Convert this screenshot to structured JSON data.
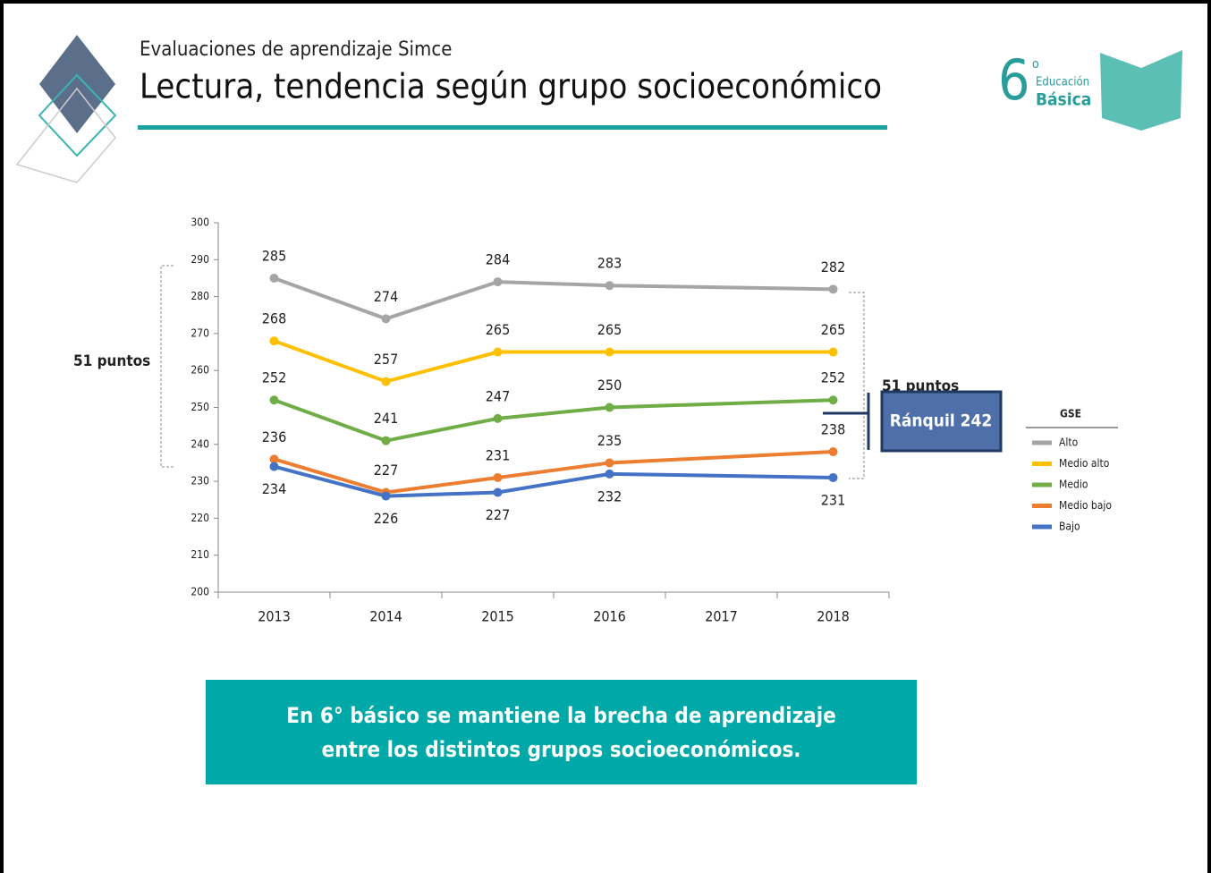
{
  "header": {
    "kicker": "Evaluaciones de aprendizaje Simce",
    "title": "Lectura, tendencia según grupo socioeconómico",
    "logo": {
      "grade": "6",
      "ordinal": "o",
      "line1": "Educación",
      "line2": "Básica"
    }
  },
  "chart_data": {
    "type": "line",
    "x": [
      2013,
      2014,
      2015,
      2016,
      2018
    ],
    "xlim": [
      2012.5,
      2018.5
    ],
    "xticks": [
      2013,
      2014,
      2015,
      2016,
      2017,
      2018
    ],
    "ylim": [
      200,
      300
    ],
    "yticks": [
      200,
      210,
      220,
      230,
      240,
      250,
      260,
      270,
      280,
      290,
      300
    ],
    "series": [
      {
        "name": "Alto",
        "color": "#a5a5a5",
        "values": [
          285,
          274,
          284,
          283,
          282
        ]
      },
      {
        "name": "Medio alto",
        "color": "#ffc000",
        "values": [
          268,
          257,
          265,
          265,
          265
        ]
      },
      {
        "name": "Medio",
        "color": "#70ad47",
        "values": [
          252,
          241,
          247,
          250,
          252
        ]
      },
      {
        "name": "Medio bajo",
        "color": "#ed7d31",
        "values": [
          236,
          227,
          231,
          235,
          238
        ]
      },
      {
        "name": "Bajo",
        "color": "#4472c4",
        "values": [
          234,
          226,
          227,
          232,
          231
        ]
      }
    ],
    "legend_title": "GSE",
    "annotations": {
      "left_gap": "51 puntos",
      "right_gap": "51 puntos",
      "marker": "Ránquil 242"
    }
  },
  "conclusion": "En 6° básico se mantiene la brecha de aprendizaje entre los distintos grupos socioeconómicos."
}
